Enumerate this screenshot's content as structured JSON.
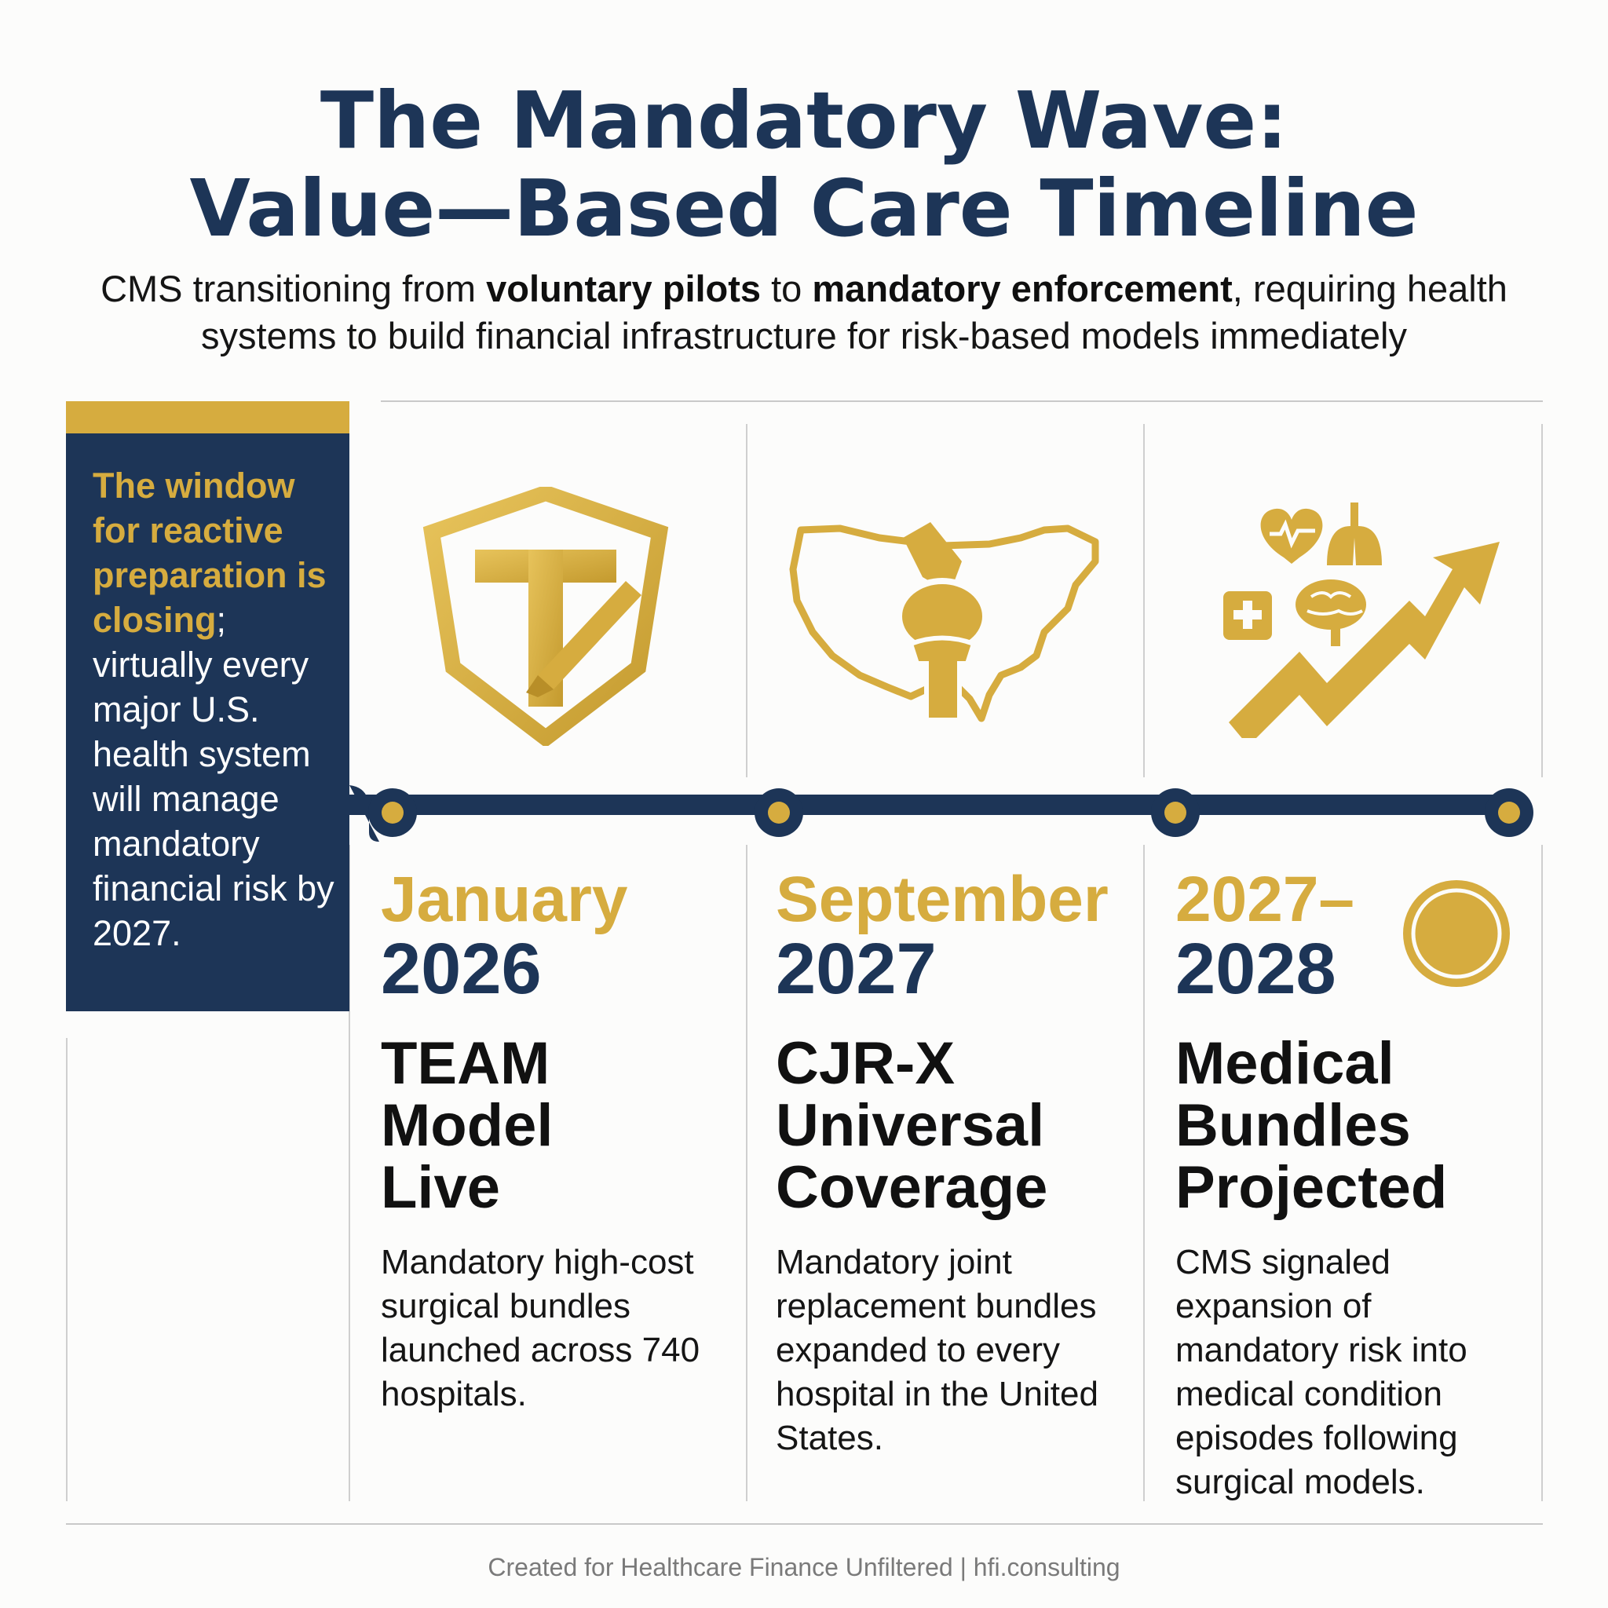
{
  "header": {
    "title_line1": "The Mandatory Wave:",
    "title_line2": "Value—Based Care Timeline",
    "subtitle": {
      "p1": "CMS transitioning from ",
      "b1": "voluntary pilots",
      "p2": " to ",
      "b2": "mandatory enforcement",
      "p3": ", requiring health systems to build financial infrastructure for risk-based models immediately"
    }
  },
  "sidebar": {
    "highlight": "The window for reactive preparation is closing",
    "rest": "; virtually every major U.S. health system will manage mandatory financial risk by 2027."
  },
  "milestones": [
    {
      "month": "January",
      "year": "2026",
      "title": [
        "TEAM",
        "Model",
        "Live"
      ],
      "description": "Mandatory high-cost surgical bundles launched across 740 hospitals.",
      "icon": "shield-scalpel-icon"
    },
    {
      "month": "September",
      "year": "2027",
      "title": [
        "CJR-X",
        "Universal",
        "Coverage"
      ],
      "description": "Mandatory joint replacement bundles expanded to every hospital in the United States.",
      "icon": "us-map-joint-icon"
    },
    {
      "month": "2027–",
      "year": "2028",
      "title": [
        "Medical",
        "Bundles",
        "Projected"
      ],
      "description": "CMS signaled expansion of mandatory risk into medical condition episodes following surgical models.",
      "icon": "medical-trend-icon"
    }
  ],
  "footer": "Created for Healthcare Finance Unfiltered | hfi.consulting",
  "colors": {
    "navy": "#1d3557",
    "gold": "#d6ac3f"
  }
}
